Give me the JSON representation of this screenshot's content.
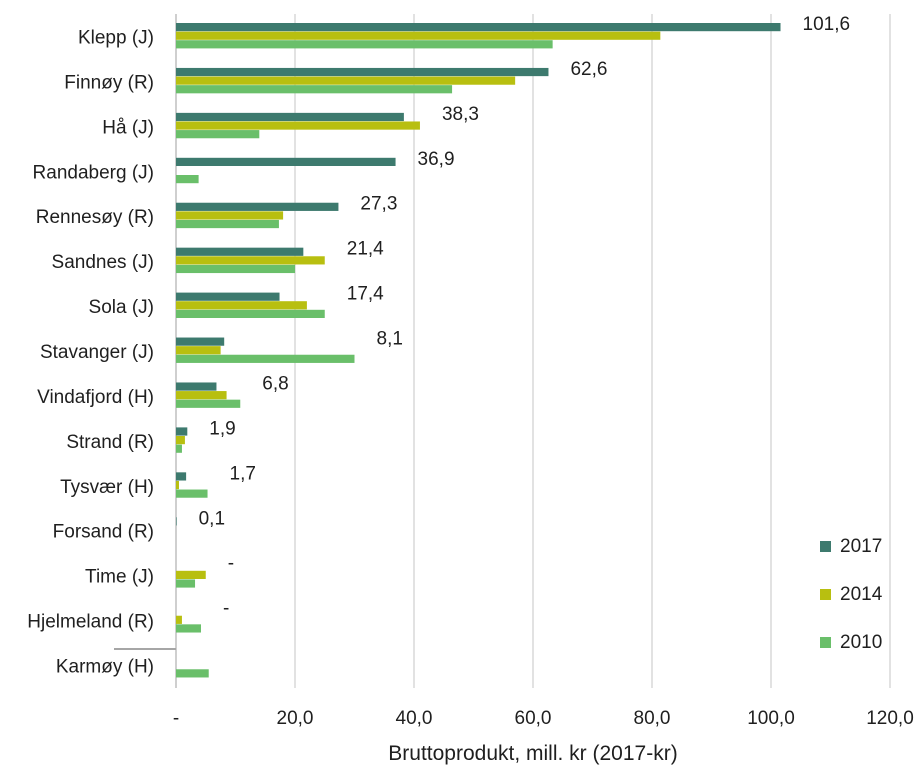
{
  "chart_data": {
    "type": "bar",
    "orientation": "horizontal",
    "title": "",
    "xlabel": "Bruttoprodukt, mill. kr (2017-kr)",
    "ylabel": "",
    "xlim": [
      0,
      120
    ],
    "x_ticks": [
      0,
      20,
      40,
      60,
      80,
      100,
      120
    ],
    "x_tick_labels": [
      "-",
      "20,0",
      "40,0",
      "60,0",
      "80,0",
      "100,0",
      "120,0"
    ],
    "grid": "vertical",
    "legend_position": "bottom-right",
    "categories": [
      "Klepp (J)",
      "Finnøy (R)",
      "Hå (J)",
      "Randaberg (J)",
      "Rennesøy (R)",
      "Sandnes (J)",
      "Sola (J)",
      "Stavanger (J)",
      "Vindafjord (H)",
      "Strand (R)",
      "Tysvær (H)",
      "Forsand (R)",
      "Time (J)",
      "Hjelmeland (R)",
      "Karmøy (H)"
    ],
    "series": [
      {
        "name": "2017",
        "color": "#3d7a6e",
        "values": [
          101.6,
          62.6,
          38.3,
          36.9,
          27.3,
          21.4,
          17.4,
          8.1,
          6.8,
          1.9,
          1.7,
          0.1,
          0,
          0,
          0
        ]
      },
      {
        "name": "2014",
        "color": "#b8bf10",
        "values": [
          81.4,
          57.0,
          41.0,
          0,
          18.0,
          25.0,
          22.0,
          7.5,
          8.5,
          1.5,
          0.5,
          0,
          5.0,
          1.0,
          0
        ]
      },
      {
        "name": "2010",
        "color": "#6abf6a",
        "values": [
          63.3,
          46.4,
          14.0,
          3.8,
          17.3,
          20.0,
          25.0,
          30.0,
          10.8,
          1.0,
          5.3,
          0,
          3.2,
          4.2,
          5.5
        ]
      }
    ],
    "data_labels": [
      "101,6",
      "62,6",
      "38,3",
      "36,9",
      "27,3",
      "21,4",
      "17,4",
      "8,1",
      "6,8",
      "1,9",
      "1,7",
      "0,1",
      "-",
      "-",
      ""
    ]
  }
}
